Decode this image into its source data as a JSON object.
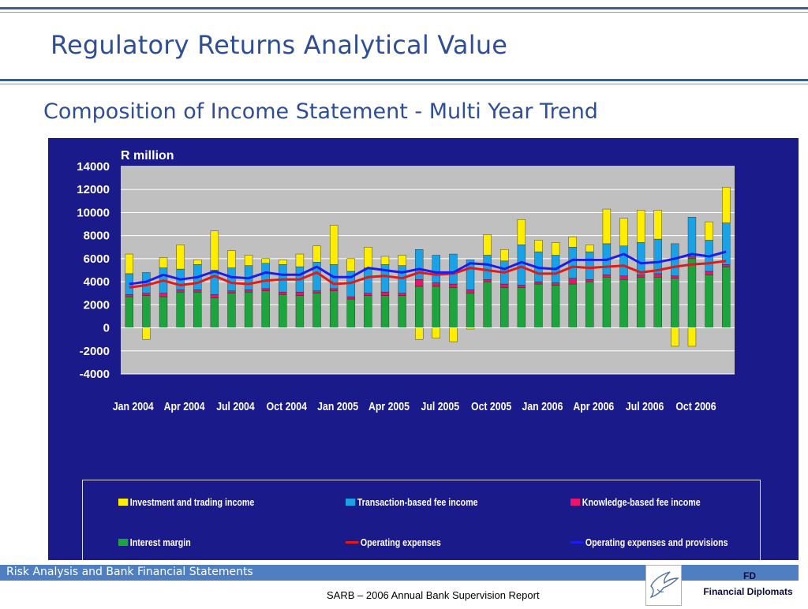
{
  "slide": {
    "title": "Regulatory Returns Analytical Value",
    "subtitle": "Composition of Income Statement - Multi Year Trend",
    "footer_left": "Risk Analysis and Bank Financial Statements",
    "source": "SARB – 2006 Annual Bank Supervision Report",
    "brand_abbr": "FD",
    "brand_name": "Financial Diplomats",
    "logo_icon": "dove-logo-icon"
  },
  "colors": {
    "accent": "#2e4f97",
    "footer_bar": "#4f7fc1",
    "chart_background": "#1b1a8a",
    "plot_background": "#c0c0c0",
    "investment_and_trading": "#ffee00",
    "transaction_fee": "#19a3e6",
    "knowledge_fee": "#e8156b",
    "interest_margin": "#1ca53c",
    "operating_expenses": "#e01a1a",
    "opex_and_provisions": "#1c1cf0"
  },
  "chart_data": {
    "type": "bar",
    "stacked": true,
    "unit_label": "R million",
    "ylim": [
      -4000,
      14000
    ],
    "yticks": [
      14000,
      12000,
      10000,
      8000,
      6000,
      4000,
      2000,
      0,
      -2000,
      -4000
    ],
    "grid": true,
    "legend_position": "bottom",
    "categories": [
      "Jan 2004",
      "Feb 2004",
      "Mar 2004",
      "Apr 2004",
      "May 2004",
      "Jun 2004",
      "Jul 2004",
      "Aug 2004",
      "Sep 2004",
      "Oct 2004",
      "Nov 2004",
      "Dec 2004",
      "Jan 2005",
      "Feb 2005",
      "Mar 2005",
      "Apr 2005",
      "May 2005",
      "Jun 2005",
      "Jul 2005",
      "Aug 2005",
      "Sep 2005",
      "Oct 2005",
      "Nov 2005",
      "Dec 2005",
      "Jan 2006",
      "Feb 2006",
      "Mar 2006",
      "Apr 2006",
      "May 2006",
      "Jun 2006",
      "Jul 2006",
      "Aug 2006",
      "Sep 2006",
      "Oct 2006",
      "Nov 2006",
      "Dec 2006"
    ],
    "xtick_labels": [
      "Jan 2004",
      "Apr 2004",
      "Jul 2004",
      "Oct 2004",
      "Jan 2005",
      "Apr 2005",
      "Jul 2005",
      "Oct 2005",
      "Jan 2006",
      "Apr 2006",
      "Jul 2006",
      "Oct 2006"
    ],
    "series": [
      {
        "name": "Interest margin",
        "kind": "bar",
        "values": [
          2700,
          2800,
          2700,
          3100,
          3100,
          2600,
          3000,
          3100,
          3200,
          2900,
          2800,
          3000,
          3200,
          2500,
          2800,
          2800,
          2800,
          3600,
          3600,
          3500,
          3000,
          4000,
          3500,
          3500,
          3800,
          3700,
          3800,
          4000,
          4400,
          4200,
          4400,
          4400,
          4300,
          6000,
          4600,
          5300
        ]
      },
      {
        "name": "Knowledge-based fee income",
        "kind": "bar",
        "values": [
          200,
          200,
          300,
          200,
          200,
          300,
          200,
          200,
          200,
          200,
          300,
          200,
          200,
          200,
          200,
          300,
          200,
          600,
          300,
          300,
          300,
          200,
          300,
          200,
          200,
          200,
          500,
          200,
          200,
          300,
          200,
          300,
          200,
          200,
          300,
          200
        ]
      },
      {
        "name": "Transaction-based fee income",
        "kind": "bar",
        "values": [
          1800,
          1800,
          2200,
          1800,
          2200,
          2100,
          2000,
          2100,
          2200,
          2400,
          2200,
          2500,
          2100,
          2200,
          2200,
          2400,
          2400,
          2600,
          2400,
          2600,
          2600,
          2100,
          2000,
          3500,
          2600,
          2400,
          2700,
          2400,
          2700,
          2600,
          2800,
          3000,
          2800,
          3400,
          2700,
          3600
        ]
      },
      {
        "name": "Investment and trading income",
        "kind": "bar",
        "values": [
          1700,
          -1000,
          900,
          2100,
          400,
          3400,
          1500,
          900,
          400,
          400,
          1100,
          1400,
          3400,
          1100,
          1800,
          700,
          900,
          -1000,
          -900,
          -1200,
          -100,
          1800,
          1000,
          2200,
          1000,
          1100,
          900,
          600,
          3000,
          2400,
          2800,
          2500,
          -1600,
          -1600,
          1600,
          3100
        ]
      },
      {
        "name": "Operating expenses",
        "kind": "line",
        "values": [
          3500,
          3700,
          4100,
          3700,
          3900,
          4500,
          3900,
          3800,
          4100,
          4200,
          4200,
          4800,
          3800,
          3900,
          4400,
          4500,
          4300,
          4800,
          4600,
          4700,
          5200,
          5000,
          4800,
          5300,
          4700,
          4700,
          5300,
          5200,
          5300,
          5400,
          4800,
          5000,
          5300,
          5500,
          5600,
          5800
        ]
      },
      {
        "name": "Operating expenses and provisions",
        "kind": "line",
        "values": [
          3800,
          4000,
          4600,
          4200,
          4400,
          4900,
          4400,
          4300,
          4800,
          4600,
          4600,
          5300,
          4400,
          4400,
          5200,
          5000,
          4800,
          5100,
          4800,
          4800,
          5600,
          5500,
          5100,
          5700,
          5200,
          5100,
          5900,
          5900,
          5900,
          6400,
          5600,
          5700,
          6000,
          6400,
          6200,
          6600
        ]
      }
    ]
  }
}
